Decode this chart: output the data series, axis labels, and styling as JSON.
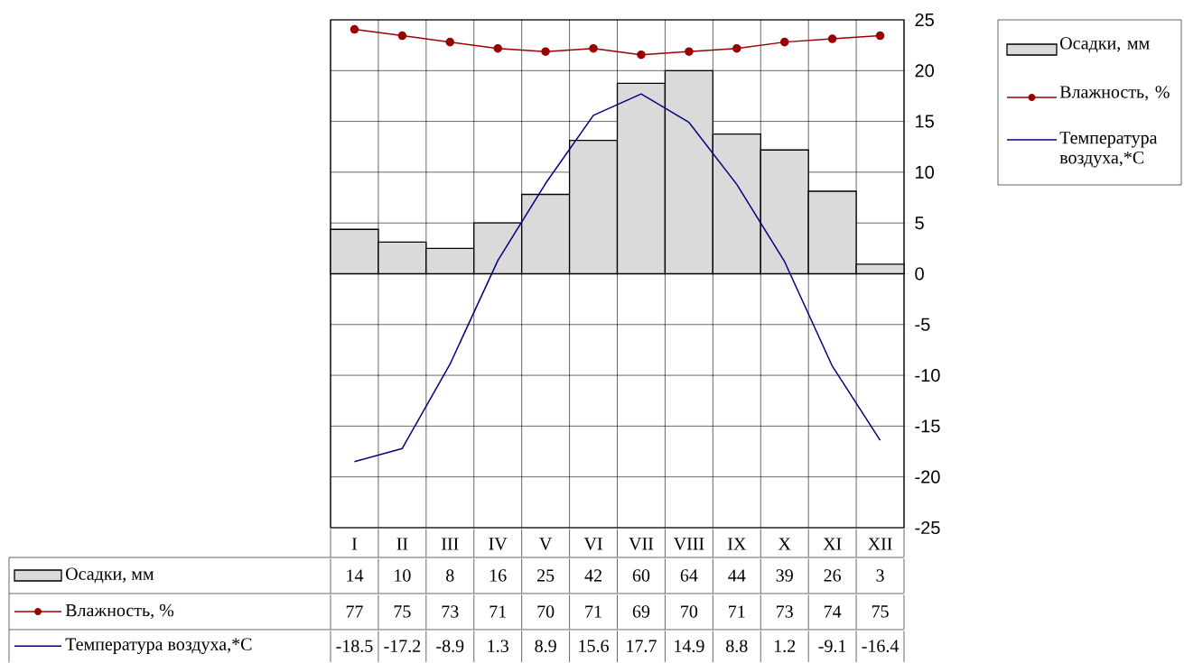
{
  "chart_data": {
    "type": "bar",
    "categories": [
      "I",
      "II",
      "III",
      "IV",
      "V",
      "VI",
      "VII",
      "VIII",
      "IX",
      "X",
      "XI",
      "XII"
    ],
    "series": [
      {
        "name": "Осадки, мм",
        "axis": "y2",
        "color": "#dadada",
        "values": [
          14,
          10,
          8,
          16,
          25,
          42,
          60,
          64,
          44,
          39,
          26,
          3
        ]
      },
      {
        "name": "Влажность, %",
        "type": "line",
        "axis": "y2",
        "color": "#990000",
        "marker": "circle",
        "values": [
          77,
          75,
          73,
          71,
          70,
          71,
          69,
          70,
          71,
          73,
          74,
          75
        ]
      },
      {
        "name": "Температура воздуха,*С",
        "type": "line",
        "axis": "y",
        "color": "#000080",
        "marker": "none",
        "values": [
          -18.5,
          -17.2,
          -8.9,
          1.3,
          8.9,
          15.6,
          17.7,
          14.9,
          8.8,
          1.2,
          -9.1,
          -16.4
        ]
      }
    ],
    "ylim": [
      -25,
      25
    ],
    "yticks": [
      -25,
      -20,
      -15,
      -10,
      -5,
      0,
      5,
      10,
      15,
      20,
      25
    ],
    "y2lim": [
      -80,
      80
    ],
    "grid": true,
    "legend": "right",
    "data_labels": true
  }
}
